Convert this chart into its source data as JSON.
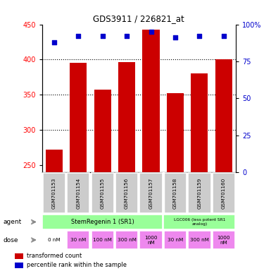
{
  "title": "GDS3911 / 226821_at",
  "samples": [
    "GSM701153",
    "GSM701154",
    "GSM701155",
    "GSM701156",
    "GSM701157",
    "GSM701158",
    "GSM701159",
    "GSM701160"
  ],
  "bar_values": [
    272,
    395,
    357,
    396,
    443,
    352,
    380,
    400
  ],
  "percentile_values": [
    88,
    92,
    92,
    92,
    95,
    91,
    92,
    92
  ],
  "y_min": 240,
  "y_max": 450,
  "y_ticks": [
    250,
    300,
    350,
    400,
    450
  ],
  "y_right_ticks": [
    0,
    25,
    50,
    75,
    100
  ],
  "bar_color": "#cc0000",
  "dot_color": "#0000cc",
  "agent_labels": [
    "StemRegenin 1 (SR1)",
    "LGC006 (less potent SR1\nanalog)"
  ],
  "dose_labels": [
    "0 nM",
    "30 nM",
    "100 nM",
    "300 nM",
    "1000\nnM",
    "30 nM",
    "300 nM",
    "1000\nnM"
  ],
  "dose_bg": [
    "#ffffff",
    "#ee88ee",
    "#ee88ee",
    "#ee88ee",
    "#ee88ee",
    "#ee88ee",
    "#ee88ee",
    "#ee88ee"
  ],
  "sample_bg": "#cccccc",
  "agent_bg": "#99ff99",
  "legend_colors": [
    "#cc0000",
    "#0000cc"
  ],
  "legend_labels": [
    "transformed count",
    "percentile rank within the sample"
  ]
}
